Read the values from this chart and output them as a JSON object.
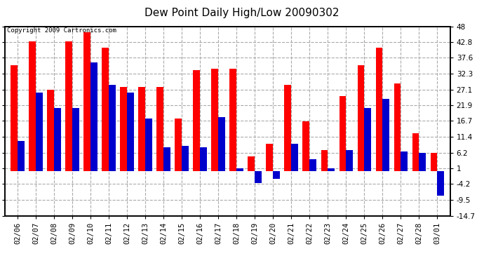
{
  "title": "Dew Point Daily High/Low 20090302",
  "copyright": "Copyright 2009 Cartronics.com",
  "dates": [
    "02/06",
    "02/07",
    "02/08",
    "02/09",
    "02/10",
    "02/11",
    "02/12",
    "02/13",
    "02/14",
    "02/15",
    "02/16",
    "02/17",
    "02/18",
    "02/19",
    "02/20",
    "02/21",
    "02/22",
    "02/23",
    "02/24",
    "02/25",
    "02/26",
    "02/27",
    "02/28",
    "03/01"
  ],
  "highs": [
    35.0,
    43.0,
    27.0,
    43.0,
    46.0,
    41.0,
    28.0,
    28.0,
    28.0,
    17.5,
    33.5,
    34.0,
    34.0,
    5.0,
    9.0,
    28.5,
    16.5,
    7.0,
    25.0,
    35.0,
    41.0,
    29.0,
    12.5,
    6.0
  ],
  "lows": [
    10.0,
    26.0,
    21.0,
    21.0,
    36.0,
    28.5,
    26.0,
    17.5,
    8.0,
    8.5,
    8.0,
    18.0,
    1.0,
    -4.0,
    -2.5,
    9.0,
    4.0,
    1.0,
    7.0,
    21.0,
    24.0,
    6.5,
    6.0,
    -8.0
  ],
  "ylim_min": -14.7,
  "ylim_max": 48.0,
  "yticks": [
    -14.7,
    -9.5,
    -4.2,
    1.0,
    6.2,
    11.4,
    16.7,
    21.9,
    27.1,
    32.3,
    37.6,
    42.8,
    48.0
  ],
  "high_color": "#ff0000",
  "low_color": "#0000cc",
  "bg_color": "#ffffff",
  "grid_color": "#aaaaaa",
  "bar_width": 0.38,
  "title_fontsize": 11,
  "tick_fontsize": 7.5
}
